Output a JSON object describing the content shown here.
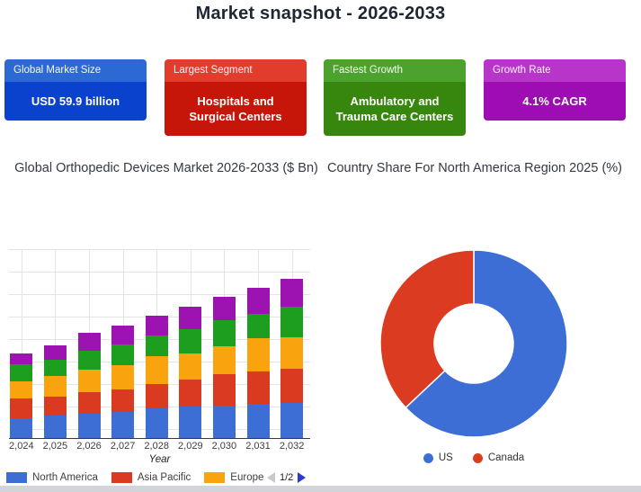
{
  "page": {
    "title": "Market snapshot - 2026-2033",
    "background": "#ffffff"
  },
  "cards": [
    {
      "label": "Global Market Size",
      "value": "USD 59.9 billion",
      "header_color": "#2d69d4",
      "body_color": "#0a41cd"
    },
    {
      "label": "Largest Segment",
      "value": "Hospitals and Surgical Centers",
      "header_color": "#e23c2d",
      "body_color": "#c6160a"
    },
    {
      "label": "Fastest Growth",
      "value": "Ambulatory and Trauma Care Centers",
      "header_color": "#4ba32d",
      "body_color": "#37870f"
    },
    {
      "label": "Growth Rate",
      "value": "4.1% CAGR",
      "header_color": "#b735c8",
      "body_color": "#9e0cb4"
    }
  ],
  "chart_data": [
    {
      "type": "bar",
      "stacked": true,
      "title": "Global Orthopedic Devices Market 2026-2033 ($ Bn)",
      "xlabel": "Year",
      "ylabel": "",
      "y_axis_labels_visible": false,
      "grid": true,
      "ylim": [
        0,
        107.5
      ],
      "categories": [
        "2,024",
        "2,025",
        "2,026",
        "2,027",
        "2,028",
        "2,029",
        "2,030",
        "2,031",
        "2,032"
      ],
      "series": [
        {
          "name": "North America",
          "color": "#3d6ed5",
          "in_visible_legend": true,
          "values": [
            11,
            12.5,
            13.5,
            14.5,
            16.5,
            17.5,
            18,
            19,
            19.5
          ]
        },
        {
          "name": "Asia Pacific",
          "color": "#d93a20",
          "in_visible_legend": true,
          "values": [
            11,
            10.5,
            12,
            12.5,
            13.5,
            15,
            17.5,
            18,
            19
          ]
        },
        {
          "name": "Europe",
          "color": "#f9a40e",
          "in_visible_legend": true,
          "values": [
            9.5,
            11.5,
            12.5,
            13.5,
            15.5,
            14.5,
            15.5,
            18.5,
            17.5
          ]
        },
        {
          "name": "",
          "color": "#1e9e1e",
          "in_visible_legend": false,
          "note": "label not visible (legend page 2)",
          "values": [
            9.5,
            9,
            10.5,
            11.5,
            11.5,
            13.5,
            14.5,
            13.5,
            17
          ]
        },
        {
          "name": "",
          "color": "#9c13b2",
          "in_visible_legend": false,
          "note": "label not visible (legend page 2)",
          "values": [
            6,
            8,
            10,
            10.5,
            11,
            12.5,
            13,
            14.5,
            15.5
          ]
        }
      ],
      "legend": {
        "position": "bottom",
        "pagination": "1/2",
        "prev_enabled": false,
        "next_enabled": true
      }
    },
    {
      "type": "pie",
      "donut": true,
      "title": "Country Share For North America Region 2025 (%)",
      "labels": [
        "US",
        "Canada"
      ],
      "values": [
        63,
        37
      ],
      "colors": [
        "#3d6ed5",
        "#da3b21"
      ],
      "start_angle_deg": 0,
      "legend_position": "bottom"
    }
  ]
}
